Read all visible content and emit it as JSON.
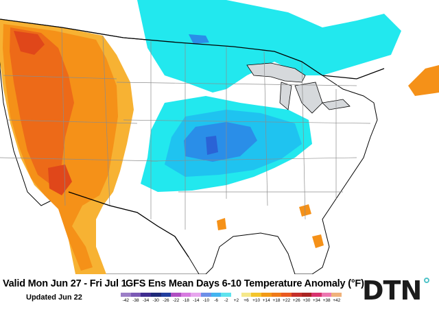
{
  "valid_period": "Valid Mon Jun 27 - Fri Jul 1",
  "updated": "Updated Jun 22",
  "title": "GFS Ens Mean Days 6-10 Temperature Anomaly (°F)",
  "logo": "DTN",
  "legend": {
    "labels": [
      "-42",
      "-38",
      "-34",
      "-30",
      "-26",
      "-22",
      "-18",
      "-14",
      "-10",
      "-6",
      "-2",
      "+2",
      "+6",
      "+10",
      "+14",
      "+18",
      "+22",
      "+26",
      "+30",
      "+34",
      "+38",
      "+42"
    ],
    "colors": [
      "#9c7fc7",
      "#7b5ab5",
      "#3f2d8f",
      "#1e2a78",
      "#223e9e",
      "#b04fc2",
      "#d77be0",
      "#e7a6ee",
      "#6d8fe8",
      "#43b4f0",
      "#5ee3ee",
      "#ffffff",
      "#f5e88a",
      "#f4c52b",
      "#f29a16",
      "#ef7a18",
      "#ea5a20",
      "#c52f2a",
      "#a92422",
      "#d8326e",
      "#ec77b0",
      "#f0b27a"
    ]
  },
  "colors": {
    "warm_light": "#f7b233",
    "warm": "#f59118",
    "warm_dark": "#ed6a18",
    "warm_darker": "#e0471a",
    "cool_light": "#22e8ee",
    "cool": "#1fc3f0",
    "cool_dark": "#2a8ee8",
    "cool_darker": "#2a63d6",
    "boundary": "#8c8c8c",
    "coast": "#000000",
    "lakes": "#d6d9dc",
    "ocean": "#ffffff"
  }
}
